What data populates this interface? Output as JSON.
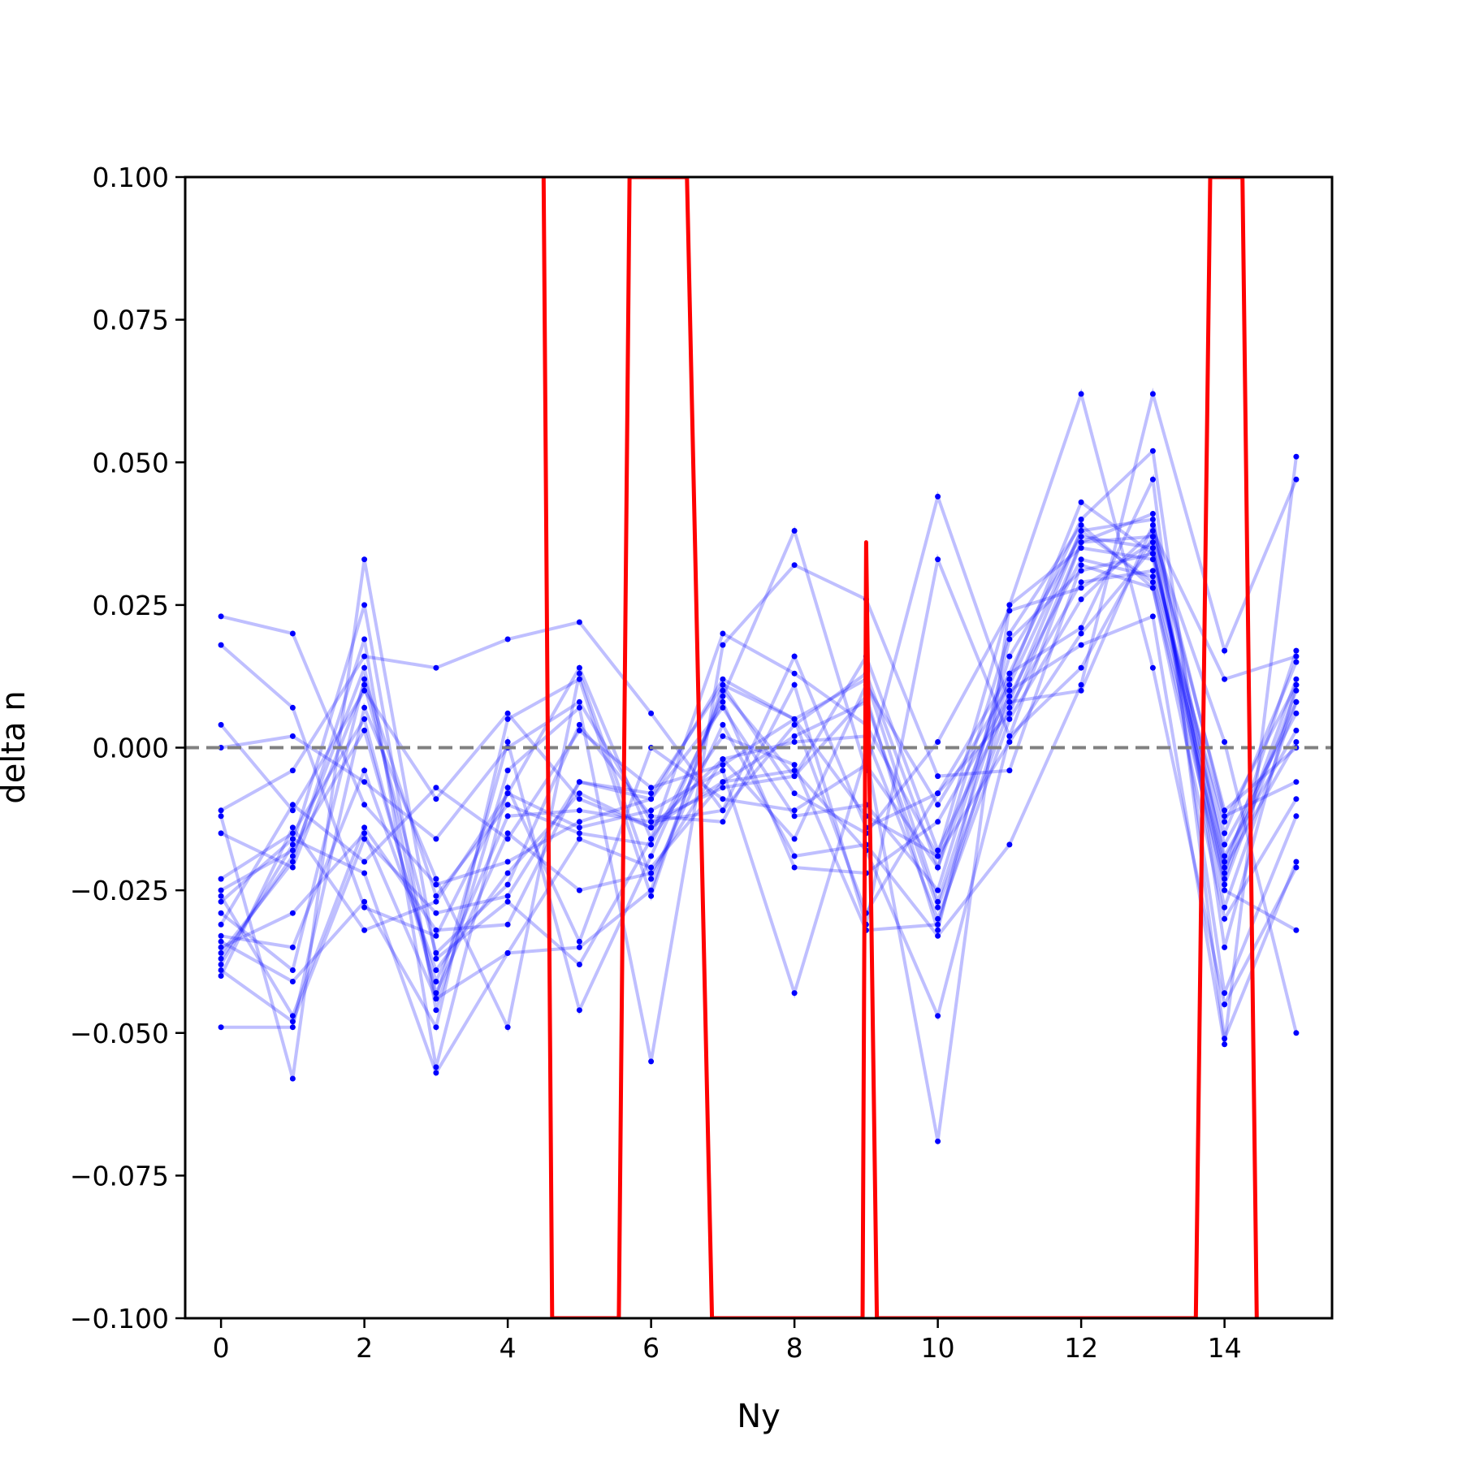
{
  "chart_data": {
    "type": "line",
    "title": "",
    "xlabel": "Ny",
    "ylabel": "delta n",
    "xlim": [
      -0.5,
      15.5
    ],
    "ylim": [
      -0.1,
      0.1
    ],
    "xticks": [
      0,
      2,
      4,
      6,
      8,
      10,
      12,
      14
    ],
    "xtick_labels": [
      "0",
      "2",
      "4",
      "6",
      "8",
      "10",
      "12",
      "14"
    ],
    "yticks": [
      -0.1,
      -0.075,
      -0.05,
      -0.025,
      0.0,
      0.025,
      0.05,
      0.075,
      0.1
    ],
    "ytick_labels": [
      "−0.100",
      "−0.075",
      "−0.050",
      "−0.025",
      "0.000",
      "0.025",
      "0.050",
      "0.075",
      "0.100"
    ],
    "grid": false,
    "legend": "none",
    "reference_line": {
      "y": 0.0,
      "style": "dashed",
      "color": "#808080"
    },
    "colors": {
      "samples": "#0000ff",
      "mean": "#ff0000"
    },
    "x": [
      0,
      1,
      2,
      3,
      4,
      5,
      6,
      7,
      8,
      9,
      10,
      11,
      12,
      13,
      14,
      15
    ],
    "mean_series": {
      "x": [
        4.5,
        4.62,
        5.55,
        5.7,
        6.5,
        6.85,
        8.95,
        9.0,
        9.15,
        13.6,
        13.8,
        14.25,
        14.45
      ],
      "values": [
        0.1,
        -0.1,
        -0.1,
        0.1,
        0.1,
        -0.1,
        -0.1,
        0.036,
        -0.1,
        -0.1,
        0.1,
        0.1,
        -0.1
      ]
    },
    "series": [
      {
        "values": [
          0.023,
          0.02,
          -0.01,
          -0.024,
          -0.02,
          -0.013,
          -0.009,
          0.012,
          0.005,
          0.012,
          -0.027,
          0.012,
          0.043,
          0.034,
          -0.022,
          0.017
        ]
      },
      {
        "values": [
          0.018,
          0.007,
          -0.028,
          -0.033,
          -0.008,
          0.014,
          -0.016,
          0.02,
          0.013,
          0.004,
          -0.019,
          0.025,
          0.035,
          0.033,
          -0.015,
          0.015
        ]
      },
      {
        "values": [
          0.004,
          -0.011,
          0.01,
          -0.009,
          0.006,
          -0.009,
          -0.014,
          -0.006,
          0.002,
          0.008,
          -0.028,
          0.007,
          0.029,
          0.031,
          -0.013,
          0.011
        ]
      },
      {
        "values": [
          0.0,
          0.002,
          -0.006,
          -0.016,
          0.0,
          0.008,
          -0.013,
          -0.007,
          -0.005,
          0.009,
          -0.032,
          0.019,
          0.031,
          0.034,
          -0.019,
          0.003
        ]
      },
      {
        "values": [
          -0.011,
          -0.004,
          0.016,
          0.014,
          0.019,
          0.022,
          0.006,
          -0.011,
          0.016,
          -0.014,
          -0.008,
          0.013,
          0.021,
          0.047,
          -0.051,
          -0.02
        ]
      },
      {
        "values": [
          -0.015,
          -0.021,
          0.011,
          -0.036,
          -0.024,
          0.004,
          -0.012,
          -0.013,
          0.011,
          -0.031,
          0.033,
          0.002,
          0.036,
          0.037,
          -0.011,
          0.0
        ]
      },
      {
        "values": [
          -0.023,
          -0.015,
          0.005,
          -0.043,
          -0.015,
          -0.025,
          -0.022,
          -0.002,
          -0.016,
          0.011,
          -0.01,
          0.011,
          0.038,
          0.04,
          -0.02,
          0.008
        ]
      },
      {
        "values": [
          -0.025,
          -0.018,
          0.003,
          -0.041,
          -0.012,
          -0.011,
          -0.013,
          -0.011,
          0.004,
          0.013,
          -0.021,
          0.02,
          0.039,
          0.028,
          -0.024,
          0.01
        ]
      },
      {
        "values": [
          -0.026,
          -0.047,
          -0.014,
          -0.032,
          -0.031,
          -0.006,
          -0.009,
          0.007,
          -0.012,
          -0.01,
          -0.025,
          0.016,
          0.037,
          0.035,
          -0.023,
          0.012
        ]
      },
      {
        "values": [
          -0.029,
          -0.039,
          0.012,
          -0.026,
          -0.01,
          -0.015,
          -0.017,
          0.008,
          -0.021,
          -0.022,
          -0.013,
          0.009,
          0.033,
          0.03,
          -0.017,
          0.006
        ]
      },
      {
        "values": [
          -0.033,
          -0.035,
          -0.004,
          -0.039,
          -0.022,
          -0.008,
          -0.014,
          -0.002,
          0.001,
          0.002,
          -0.03,
          0.005,
          0.026,
          0.038,
          0.012,
          0.016
        ]
      },
      {
        "values": [
          -0.034,
          -0.041,
          -0.027,
          -0.049,
          0.005,
          0.012,
          -0.026,
          0.011,
          -0.008,
          -0.015,
          0.001,
          0.024,
          0.028,
          0.036,
          -0.028,
          0.008
        ]
      },
      {
        "values": [
          -0.036,
          -0.02,
          0.019,
          -0.056,
          -0.007,
          -0.034,
          0.0,
          -0.009,
          -0.011,
          -0.003,
          -0.021,
          0.013,
          0.04,
          0.052,
          -0.035,
          0.011
        ]
      },
      {
        "values": [
          -0.037,
          -0.019,
          0.014,
          -0.044,
          0.001,
          -0.046,
          -0.019,
          0.009,
          0.038,
          -0.004,
          0.044,
          0.008,
          0.038,
          0.029,
          -0.021,
          0.001
        ]
      },
      {
        "values": [
          -0.038,
          -0.017,
          0.025,
          -0.046,
          -0.004,
          0.007,
          -0.055,
          0.018,
          0.032,
          0.026,
          -0.005,
          -0.004,
          0.032,
          0.028,
          -0.03,
          -0.009
        ]
      },
      {
        "values": [
          -0.04,
          -0.014,
          -0.032,
          -0.027,
          -0.008,
          -0.014,
          -0.011,
          -0.004,
          -0.043,
          -0.001,
          -0.069,
          0.025,
          0.062,
          0.014,
          -0.045,
          -0.021
        ]
      },
      {
        "values": [
          -0.049,
          -0.049,
          0.007,
          -0.023,
          -0.049,
          0.013,
          -0.023,
          0.004,
          -0.019,
          -0.017,
          -0.033,
          -0.017,
          0.011,
          0.062,
          0.017,
          0.047
        ]
      },
      {
        "values": [
          -0.012,
          -0.058,
          0.033,
          -0.037,
          -0.027,
          -0.038,
          -0.016,
          0.002,
          -0.003,
          -0.032,
          -0.031,
          0.01,
          0.018,
          0.023,
          -0.052,
          0.051
        ]
      },
      {
        "values": [
          -0.027,
          -0.016,
          -0.022,
          -0.057,
          -0.036,
          -0.016,
          -0.021,
          -0.006,
          -0.004,
          -0.018,
          -0.047,
          0.002,
          0.014,
          0.037,
          0.001,
          -0.05
        ]
      },
      {
        "values": [
          -0.031,
          -0.01,
          -0.02,
          -0.007,
          -0.016,
          0.003,
          -0.007,
          -0.003,
          0.005,
          -0.012,
          -0.019,
          0.001,
          0.02,
          0.035,
          -0.025,
          -0.032
        ]
      },
      {
        "values": [
          -0.035,
          -0.029,
          -0.015,
          -0.044,
          -0.036,
          -0.035,
          -0.025,
          0.01,
          -0.005,
          0.016,
          -0.018,
          0.008,
          0.01,
          0.039,
          -0.012,
          -0.006
        ]
      },
      {
        "values": [
          -0.039,
          -0.048,
          -0.016,
          -0.029,
          -0.026,
          -0.006,
          -0.008,
          0.011,
          0.005,
          -0.029,
          -0.008,
          0.006,
          0.036,
          0.041,
          -0.043,
          -0.012
        ]
      }
    ]
  }
}
